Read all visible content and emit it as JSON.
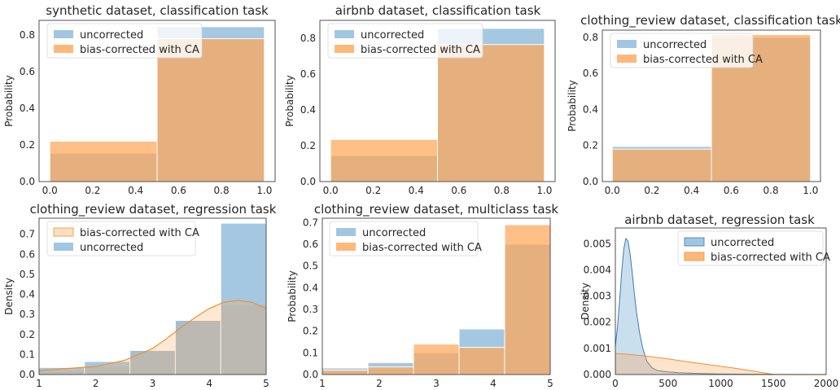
{
  "colors": {
    "uncorrected": "#8ab8da",
    "corrected": "#ffa657",
    "corrected_line": "#f28e2b",
    "uncorrected_line": "#3f79b0"
  },
  "chart_data": [
    {
      "type": "bar",
      "title": "synthetic dataset, classification task",
      "ylabel": "Probability",
      "xlabel": "",
      "xlim": [
        -0.05,
        1.05
      ],
      "ylim": [
        0,
        0.88
      ],
      "xticks": [
        "0.0",
        "0.2",
        "0.4",
        "0.6",
        "0.8",
        "1.0"
      ],
      "yticks": [
        "0.0",
        "0.2",
        "0.4",
        "0.6",
        "0.8"
      ],
      "bins": [
        [
          0,
          0.5
        ],
        [
          0.5,
          1.0
        ]
      ],
      "series": [
        {
          "name": "uncorrected",
          "values": [
            0.155,
            0.845
          ]
        },
        {
          "name": "bias-corrected with CA",
          "values": [
            0.22,
            0.78
          ]
        }
      ],
      "legend": "top-left",
      "legend_order": [
        "uncorrected",
        "bias-corrected with CA"
      ]
    },
    {
      "type": "bar",
      "title": "airbnb dataset, classification task",
      "ylabel": "Probability",
      "xlabel": "",
      "xlim": [
        -0.05,
        1.05
      ],
      "ylim": [
        0,
        0.9
      ],
      "xticks": [
        "0.0",
        "0.2",
        "0.4",
        "0.6",
        "0.8",
        "1.0"
      ],
      "yticks": [
        "0.0",
        "0.2",
        "0.4",
        "0.6",
        "0.8"
      ],
      "bins": [
        [
          0,
          0.5
        ],
        [
          0.5,
          1.0
        ]
      ],
      "series": [
        {
          "name": "uncorrected",
          "values": [
            0.145,
            0.855
          ]
        },
        {
          "name": "bias-corrected with CA",
          "values": [
            0.235,
            0.765
          ]
        }
      ],
      "legend": "top-left",
      "legend_order": [
        "uncorrected",
        "bias-corrected with CA"
      ]
    },
    {
      "type": "bar",
      "title": "clothing_review dataset, classification task",
      "ylabel": "Probability",
      "xlabel": "",
      "xlim": [
        -0.05,
        1.05
      ],
      "ylim": [
        0,
        0.84
      ],
      "xticks": [
        "0.0",
        "0.2",
        "0.4",
        "0.6",
        "0.8",
        "1.0"
      ],
      "yticks": [
        "0.0",
        "0.2",
        "0.4",
        "0.6",
        "0.8"
      ],
      "bins": [
        [
          0,
          0.5
        ],
        [
          0.5,
          1.0
        ]
      ],
      "series": [
        {
          "name": "uncorrected",
          "values": [
            0.195,
            0.8
          ]
        },
        {
          "name": "bias-corrected with CA",
          "values": [
            0.18,
            0.815
          ]
        }
      ],
      "legend": "top-left",
      "legend_order": [
        "uncorrected",
        "bias-corrected with CA"
      ]
    },
    {
      "type": "bar",
      "title": "clothing_review dataset, regression task",
      "ylabel": "Density",
      "xlabel": "",
      "xlim": [
        1,
        5
      ],
      "ylim": [
        0,
        0.78
      ],
      "xticks": [
        "1",
        "2",
        "3",
        "4",
        "5"
      ],
      "yticks": [
        "0.0",
        "0.1",
        "0.2",
        "0.3",
        "0.4",
        "0.5",
        "0.6",
        "0.7"
      ],
      "bins": [
        [
          1,
          1.8
        ],
        [
          1.8,
          2.6
        ],
        [
          2.6,
          3.4
        ],
        [
          3.4,
          4.2
        ],
        [
          4.2,
          5.0
        ]
      ],
      "series": [
        {
          "name": "uncorrected",
          "values": [
            0.035,
            0.065,
            0.12,
            0.27,
            0.755
          ]
        },
        {
          "name": "bias-corrected with CA",
          "values": [
            0.02,
            0.04,
            0.12,
            0.27,
            0.35
          ]
        }
      ],
      "kde": {
        "name": "bias-corrected with CA",
        "x": [
          1.0,
          1.5,
          2.0,
          2.5,
          3.0,
          3.25,
          3.5,
          3.75,
          4.0,
          4.25,
          4.5,
          4.75,
          5.0
        ],
        "y": [
          0.02,
          0.03,
          0.04,
          0.07,
          0.13,
          0.18,
          0.235,
          0.285,
          0.33,
          0.36,
          0.37,
          0.36,
          0.33
        ]
      },
      "legend": "top-left",
      "legend_order": [
        "bias-corrected with CA",
        "uncorrected"
      ]
    },
    {
      "type": "bar",
      "title": "clothing_review dataset, multiclass task",
      "ylabel": "Probability",
      "xlabel": "",
      "xlim": [
        1,
        5
      ],
      "ylim": [
        0,
        0.72
      ],
      "xticks": [
        "1",
        "2",
        "3",
        "4",
        "5"
      ],
      "yticks": [
        "0.0",
        "0.1",
        "0.2",
        "0.3",
        "0.4",
        "0.5",
        "0.6",
        "0.7"
      ],
      "bins": [
        [
          1,
          1.8
        ],
        [
          1.8,
          2.6
        ],
        [
          2.6,
          3.4
        ],
        [
          3.4,
          4.2
        ],
        [
          4.2,
          5.0
        ]
      ],
      "series": [
        {
          "name": "uncorrected",
          "values": [
            0.03,
            0.055,
            0.1,
            0.21,
            0.6
          ]
        },
        {
          "name": "bias-corrected with CA",
          "values": [
            0.02,
            0.035,
            0.14,
            0.125,
            0.69
          ]
        }
      ],
      "legend": "top-left",
      "legend_order": [
        "uncorrected",
        "bias-corrected with CA"
      ]
    },
    {
      "type": "area",
      "title": "airbnb dataset, regression task",
      "ylabel": "Density",
      "xlabel": "",
      "xlim": [
        0,
        2000
      ],
      "ylim": [
        0,
        0.0056
      ],
      "xticks": [
        "0",
        "500",
        "1000",
        "1500",
        "2000"
      ],
      "yticks": [
        "0.000",
        "0.001",
        "0.002",
        "0.003",
        "0.004",
        "0.005"
      ],
      "series": [
        {
          "name": "uncorrected",
          "x": [
            0,
            20,
            40,
            60,
            80,
            100,
            120,
            140,
            160,
            180,
            200,
            230,
            260,
            300,
            350,
            400,
            500,
            600,
            800,
            1000,
            1200,
            1500,
            2000
          ],
          "y": [
            0.0011,
            0.0018,
            0.0028,
            0.0039,
            0.0048,
            0.0052,
            0.0051,
            0.0046,
            0.0039,
            0.0031,
            0.0024,
            0.0016,
            0.001,
            0.0005,
            0.00025,
            0.00015,
            0.0001,
            7e-05,
            4e-05,
            2e-05,
            1e-05,
            5e-06,
            0.0
          ]
        },
        {
          "name": "bias-corrected with CA",
          "x": [
            0,
            100,
            300,
            500,
            700,
            900,
            1100,
            1300,
            1450,
            1500,
            1600,
            2000
          ],
          "y": [
            0.0008,
            0.00078,
            0.0007,
            0.0006,
            0.00048,
            0.00037,
            0.00026,
            0.00014,
            4e-05,
            0.0,
            0.0,
            0.0
          ]
        }
      ],
      "legend": "top-right",
      "legend_order": [
        "uncorrected",
        "bias-corrected with CA"
      ]
    }
  ]
}
